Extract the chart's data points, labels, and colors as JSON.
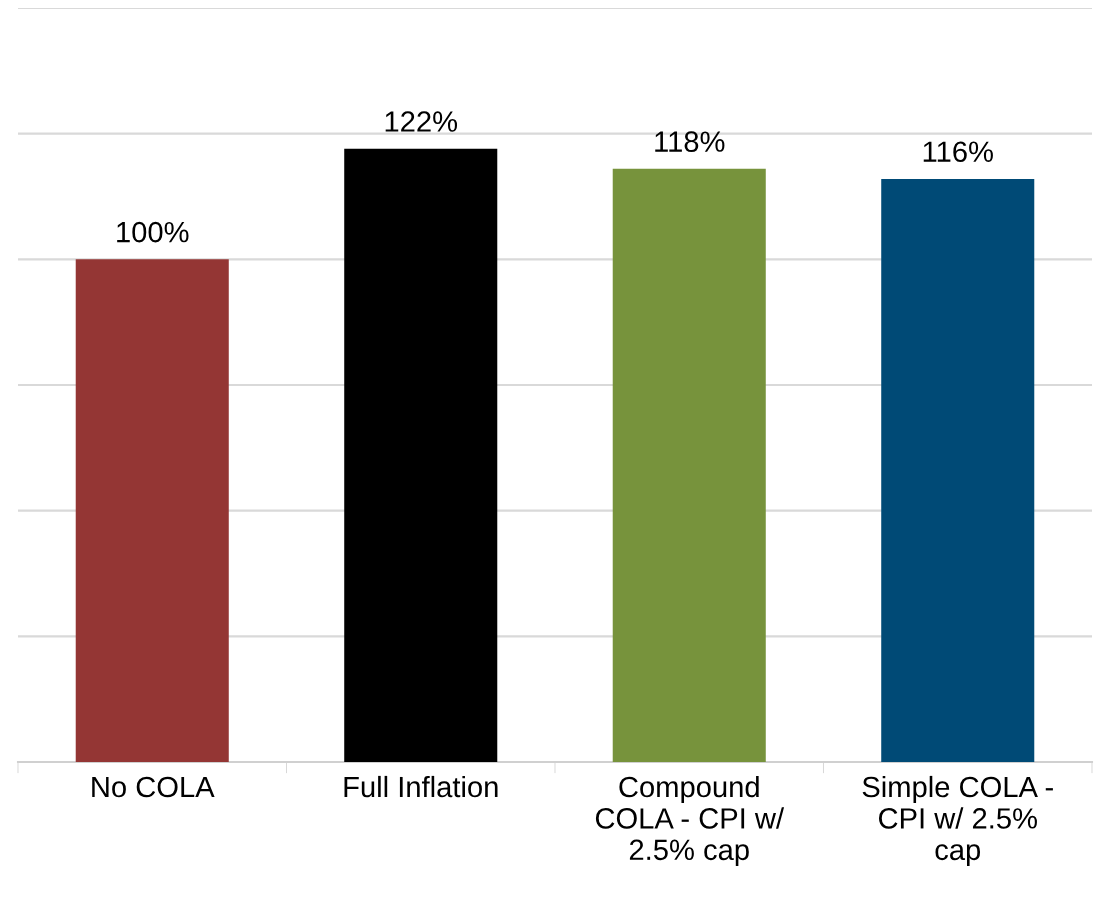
{
  "chart_data": {
    "type": "bar",
    "categories": [
      "No COLA",
      "Full Inflation",
      "Compound\nCOLA - CPI w/\n2.5% cap",
      "Simple COLA -\nCPI w/ 2.5%\ncap"
    ],
    "values": [
      100,
      122,
      118,
      116
    ],
    "colors": [
      "#943634",
      "#000000",
      "#77933c",
      "#004a76"
    ],
    "value_labels": [
      "100%",
      "122%",
      "118%",
      "116%"
    ],
    "ylim": [
      0,
      150
    ],
    "yticks": [
      {
        "value": 0,
        "label": null
      },
      {
        "value": 25,
        "label": null
      },
      {
        "value": 50,
        "label": null
      },
      {
        "value": 75,
        "label": null
      },
      {
        "value": 100,
        "label": null
      },
      {
        "value": 125,
        "label": null
      },
      {
        "value": 150,
        "label": null
      }
    ],
    "grid": "y",
    "tick_labels": "x"
  }
}
